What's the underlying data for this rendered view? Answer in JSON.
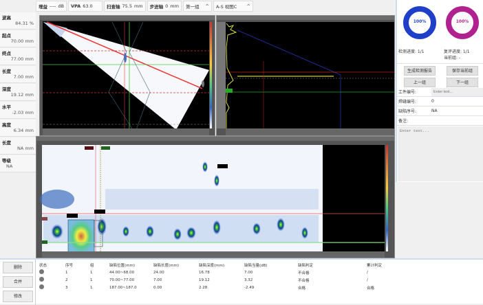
{
  "toolbar": {
    "gain_label": "增益",
    "gain_value": "----",
    "gain_unit": "dB",
    "vpa_label": "VPA",
    "vpa_value": "63.0",
    "scan_label": "扫查轴",
    "scan_value": "75.5",
    "scan_unit": "mm",
    "index_label": "步进轴",
    "index_value": "0",
    "index_unit": "mm",
    "group_select": "第一组",
    "view_select": "A-S 视图C"
  },
  "measurements": [
    {
      "label": "波高",
      "value": "84.31 %"
    },
    {
      "label": "起点",
      "value": "70.00 mm"
    },
    {
      "label": "终点",
      "value": "77.00 mm"
    },
    {
      "label": "长度",
      "value": "7.00 mm"
    },
    {
      "label": "深度",
      "value": "19.12 mm"
    },
    {
      "label": "水平",
      "value": "-2.03 mm"
    },
    {
      "label": "高度",
      "value": "6.34 mm"
    },
    {
      "label": "长度",
      "value": "NA mm"
    },
    {
      "label": "等级",
      "value": "NA"
    }
  ],
  "progress": {
    "detect_value": "100%",
    "detect_percent": 100,
    "detect_color": "#1f3fc8",
    "review_value": "100%",
    "review_percent": 100,
    "review_color": "#b0228f",
    "detect_label": "检测进度: 1/1",
    "review_label": "复评进度: 1/1",
    "current_group": "当前组:   -"
  },
  "actions": {
    "report": "生成检测报告",
    "save": "保存当前组",
    "prev": "上一组",
    "next": "下一组"
  },
  "form": {
    "workpiece_label": "工件编号:",
    "workpiece_placeholder": "Enter text...",
    "weld_label": "焊缝编号:",
    "weld_value": "0",
    "defect_label": "缺陷序号:",
    "defect_value": "NA",
    "note_label": "备注:",
    "note_placeholder": "Enter text..."
  },
  "side_buttons": {
    "delete": "删除",
    "merge": "合并",
    "modify": "修改"
  },
  "table": {
    "headers": [
      "状态",
      "序号",
      "组",
      "缺陷位置(mm)",
      "缺陷长度(mm)",
      "缺陷深度(mm)",
      "缺陷当量(dB)",
      "缺陷判定",
      "累计判定"
    ],
    "rows": [
      [
        "",
        "1",
        "1",
        "44.00~68.00",
        "24.00",
        "16.78",
        "7.00",
        "不合格",
        "/"
      ],
      [
        "",
        "2",
        "1",
        "70.00~77.00",
        "7.00",
        "19.12",
        "3.32",
        "不合格",
        "/"
      ],
      [
        "",
        "3",
        "1",
        "187.00~187.0",
        "0.00",
        "2.28",
        "-2.49",
        "合格",
        "合格"
      ]
    ]
  }
}
